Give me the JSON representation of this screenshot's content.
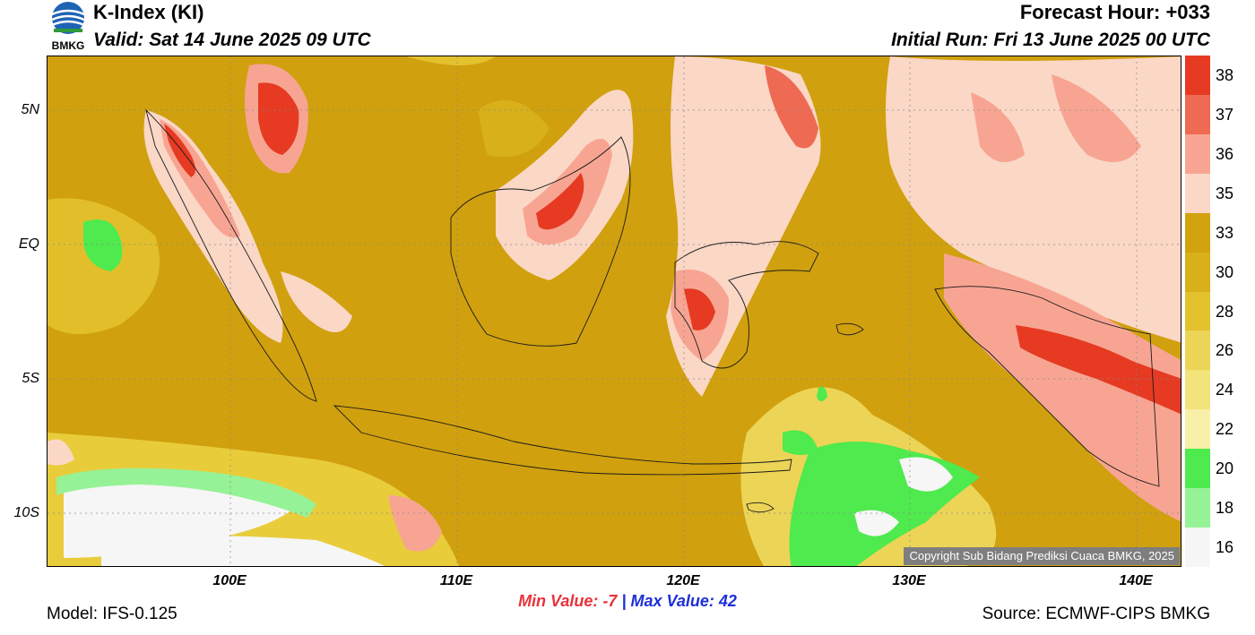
{
  "header": {
    "title": "K-Index (KI)",
    "valid": "Valid: Sat 14 June 2025 09 UTC",
    "forecast_hour": "Forecast Hour: +033",
    "initial_run": "Initial Run: Fri 13 June 2025 00 UTC",
    "logo_text": "BMKG"
  },
  "map": {
    "lat_labels": [
      "5N",
      "EQ",
      "5S",
      "10S"
    ],
    "lon_labels": [
      "100E",
      "110E",
      "120E",
      "130E",
      "140E"
    ],
    "copyright": "Copyright Sub Bidang Prediksi Cuaca BMKG, 2025"
  },
  "colorbar": {
    "labels": [
      "38",
      "37",
      "36",
      "35",
      "33",
      "30",
      "28",
      "26",
      "24",
      "22",
      "20",
      "18",
      "16"
    ],
    "colors": [
      "#e63a22",
      "#ef6a52",
      "#f7a592",
      "#fbd7c6",
      "#d2a30e",
      "#d8b01a",
      "#e3c22d",
      "#ecd456",
      "#f2e37a",
      "#f8f0a8",
      "#4eea4e",
      "#96f296",
      "#f6f6f6"
    ]
  },
  "footer": {
    "min_label": "Min Value:",
    "min_value": "-7",
    "separator": "|",
    "max_label": "Max Value:",
    "max_value": "42",
    "model": "Model: IFS-0.125",
    "source": "Source: ECMWF-CIPS BMKG"
  }
}
